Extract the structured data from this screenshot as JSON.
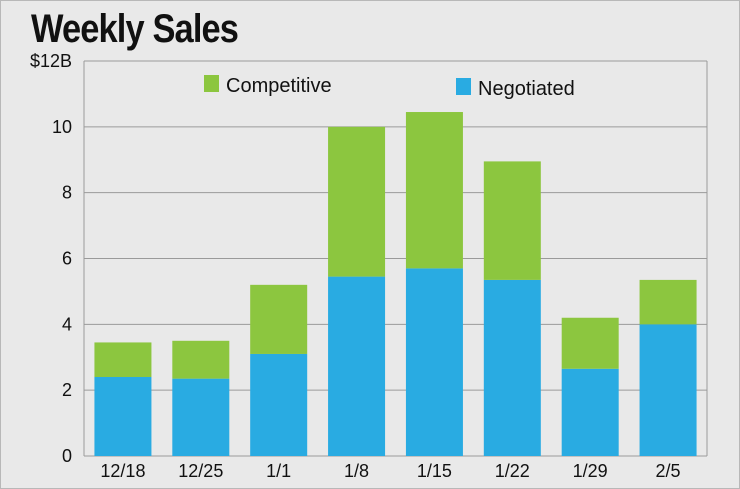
{
  "colors": {
    "background": "#e9e9e9",
    "gridline": "#9a9a9a",
    "competitive": "#8cc63f",
    "negotiated": "#29abe2"
  },
  "chart_data": {
    "type": "bar",
    "stacked": true,
    "title": "Weekly Sales",
    "xlabel": "",
    "ylabel": "",
    "categories": [
      "12/18",
      "12/25",
      "1/1",
      "1/8",
      "1/15",
      "1/22",
      "1/29",
      "2/5"
    ],
    "series": [
      {
        "name": "Negotiated",
        "color": "#29abe2",
        "values": [
          2.4,
          2.35,
          3.1,
          5.45,
          5.7,
          5.35,
          2.65,
          4.0
        ]
      },
      {
        "name": "Competitive",
        "color": "#8cc63f",
        "values": [
          1.05,
          1.15,
          2.1,
          4.55,
          4.75,
          3.6,
          1.55,
          1.35
        ]
      }
    ],
    "ylim": [
      0,
      12
    ],
    "yticks": [
      0,
      2,
      4,
      6,
      8,
      10,
      12
    ],
    "ytick_labels": [
      "0",
      "2",
      "4",
      "6",
      "8",
      "10",
      "$12B"
    ],
    "grid": true,
    "legend": [
      {
        "label": "Competitive",
        "color": "#8cc63f"
      },
      {
        "label": "Negotiated",
        "color": "#29abe2"
      }
    ],
    "legend_position": "top"
  }
}
